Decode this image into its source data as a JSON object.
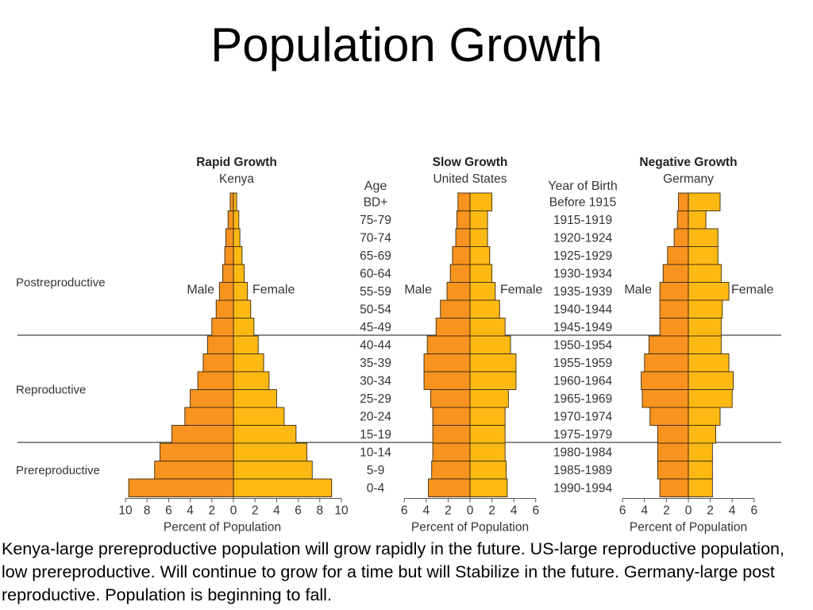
{
  "slide": {
    "title": "Population Growth",
    "caption": "Kenya-large prereproductive population will grow rapidly in the future. US-large reproductive population, low prereproductive. Will continue to grow for a time but will Stabilize in the future. Germany-large post reproductive. Population is beginning to fall."
  },
  "colors": {
    "male_bar": "#F7931E",
    "female_bar": "#FDB913",
    "bar_outline": "#3a2a10",
    "divider_line": "#444444"
  },
  "chart_data": {
    "type": "bar",
    "orientation": "horizontal-population-pyramid",
    "age_header": "Age",
    "year_header": "Year of Birth",
    "age_groups": [
      "BD+",
      "75-79",
      "70-74",
      "65-69",
      "60-64",
      "55-59",
      "50-54",
      "45-49",
      "40-44",
      "35-39",
      "30-34",
      "25-29",
      "20-24",
      "15-19",
      "10-14",
      "5-9",
      "0-4"
    ],
    "years_of_birth": [
      "Before 1915",
      "1915-1919",
      "1920-1924",
      "1925-1929",
      "1930-1934",
      "1935-1939",
      "1940-1944",
      "1945-1949",
      "1950-1954",
      "1955-1959",
      "1960-1964",
      "1965-1969",
      "1970-1974",
      "1975-1979",
      "1980-1984",
      "1985-1989",
      "1990-1994"
    ],
    "stage_labels": [
      {
        "label": "Postreproductive",
        "rows": [
          0,
          7
        ]
      },
      {
        "label": "Reproductive",
        "rows": [
          8,
          13
        ]
      },
      {
        "label": "Prereproductive",
        "rows": [
          14,
          16
        ]
      }
    ],
    "xlabel": "Percent of Population",
    "male_label": "Male",
    "female_label": "Female",
    "pyramids": [
      {
        "title": "Rapid Growth",
        "country": "Kenya",
        "xlim": 10,
        "ticks": [
          "10",
          "8",
          "6",
          "4",
          "2",
          "0",
          "2",
          "4",
          "6",
          "8",
          "10"
        ],
        "male": [
          0.3,
          0.5,
          0.7,
          0.8,
          1.0,
          1.3,
          1.6,
          2.0,
          2.4,
          2.8,
          3.3,
          4.0,
          4.5,
          5.7,
          6.8,
          7.3,
          9.7
        ],
        "female": [
          0.3,
          0.5,
          0.6,
          0.8,
          1.0,
          1.3,
          1.6,
          1.9,
          2.3,
          2.8,
          3.3,
          4.0,
          4.7,
          5.8,
          6.8,
          7.3,
          9.1
        ]
      },
      {
        "title": "Slow Growth",
        "country": "United States",
        "xlim": 6,
        "ticks": [
          "6",
          "4",
          "2",
          "0",
          "2",
          "4",
          "6"
        ],
        "male": [
          1.1,
          1.2,
          1.3,
          1.6,
          1.8,
          2.1,
          2.7,
          3.1,
          3.9,
          4.2,
          4.2,
          3.6,
          3.4,
          3.4,
          3.4,
          3.5,
          3.8
        ],
        "female": [
          2.0,
          1.6,
          1.6,
          1.8,
          2.0,
          2.3,
          2.7,
          3.2,
          3.7,
          4.2,
          4.2,
          3.5,
          3.2,
          3.2,
          3.2,
          3.3,
          3.4
        ]
      },
      {
        "title": "Negative Growth",
        "country": "Germany",
        "xlim": 6,
        "ticks": [
          "6",
          "4",
          "2",
          "0",
          "2",
          "4",
          "6"
        ],
        "male": [
          0.9,
          1.0,
          1.3,
          1.9,
          2.3,
          2.6,
          2.6,
          2.6,
          3.6,
          4.0,
          4.3,
          4.2,
          3.5,
          2.8,
          2.8,
          2.8,
          2.6
        ],
        "female": [
          2.9,
          1.6,
          2.7,
          2.7,
          3.0,
          3.7,
          3.1,
          3.0,
          3.0,
          3.7,
          4.1,
          4.0,
          2.9,
          2.5,
          2.2,
          2.2,
          2.2
        ]
      }
    ]
  }
}
